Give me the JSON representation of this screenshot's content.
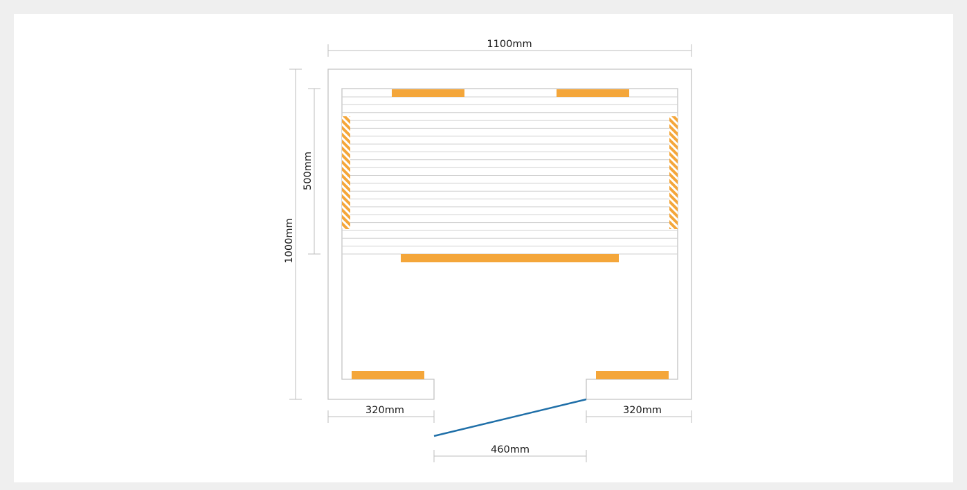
{
  "diagram": {
    "dimensions": {
      "overall_width": "1100mm",
      "overall_depth": "1000mm",
      "bench_depth": "500mm",
      "front_left_wall": "320mm",
      "front_right_wall": "320mm",
      "door_opening": "460mm"
    },
    "colors": {
      "heater": "#f4a63a",
      "door": "#1f6fa8",
      "wall_line": "#c4c4c4",
      "dimension_line": "#bdbdbd",
      "slat_line": "#cfcfcf",
      "background": "#efefef",
      "canvas": "#ffffff"
    }
  }
}
